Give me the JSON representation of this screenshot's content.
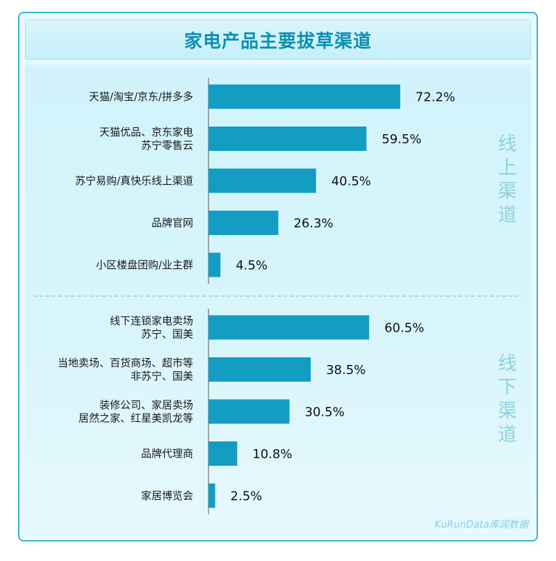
{
  "title": "家电产品主要拔草渠道",
  "watermark": "KuRunData库润数据",
  "colors": {
    "bar": "#139dc2",
    "axis": "#555555",
    "divider": "#7fcfe0",
    "group_label": "#8fd1de"
  },
  "chart_data": {
    "type": "bar",
    "orientation": "horizontal",
    "title": "家电产品主要拔草渠道",
    "unit": "%",
    "xlim": [
      0,
      100
    ],
    "groups": [
      {
        "name": "线上渠道",
        "items": [
          {
            "label": [
              "天猫/淘宝/京东/拼多多"
            ],
            "value": 72.2,
            "value_label": "72.2%"
          },
          {
            "label": [
              "天猫优品、京东家电",
              "苏宁零售云"
            ],
            "value": 59.5,
            "value_label": "59.5%"
          },
          {
            "label": [
              "苏宁易购/真快乐线上渠道"
            ],
            "value": 40.5,
            "value_label": "40.5%"
          },
          {
            "label": [
              "品牌官网"
            ],
            "value": 26.3,
            "value_label": "26.3%"
          },
          {
            "label": [
              "小区楼盘团购/业主群"
            ],
            "value": 4.5,
            "value_label": "4.5%"
          }
        ]
      },
      {
        "name": "线下渠道",
        "items": [
          {
            "label": [
              "线下连锁家电卖场",
              "苏宁、国美"
            ],
            "value": 60.5,
            "value_label": "60.5%"
          },
          {
            "label": [
              "当地卖场、百货商场、超市等",
              "非苏宁、国美"
            ],
            "value": 38.5,
            "value_label": "38.5%"
          },
          {
            "label": [
              "装修公司、家居卖场",
              "居然之家、红星美凯龙等"
            ],
            "value": 30.5,
            "value_label": "30.5%"
          },
          {
            "label": [
              "品牌代理商"
            ],
            "value": 10.8,
            "value_label": "10.8%"
          },
          {
            "label": [
              "家居博览会"
            ],
            "value": 2.5,
            "value_label": "2.5%"
          }
        ]
      }
    ]
  }
}
